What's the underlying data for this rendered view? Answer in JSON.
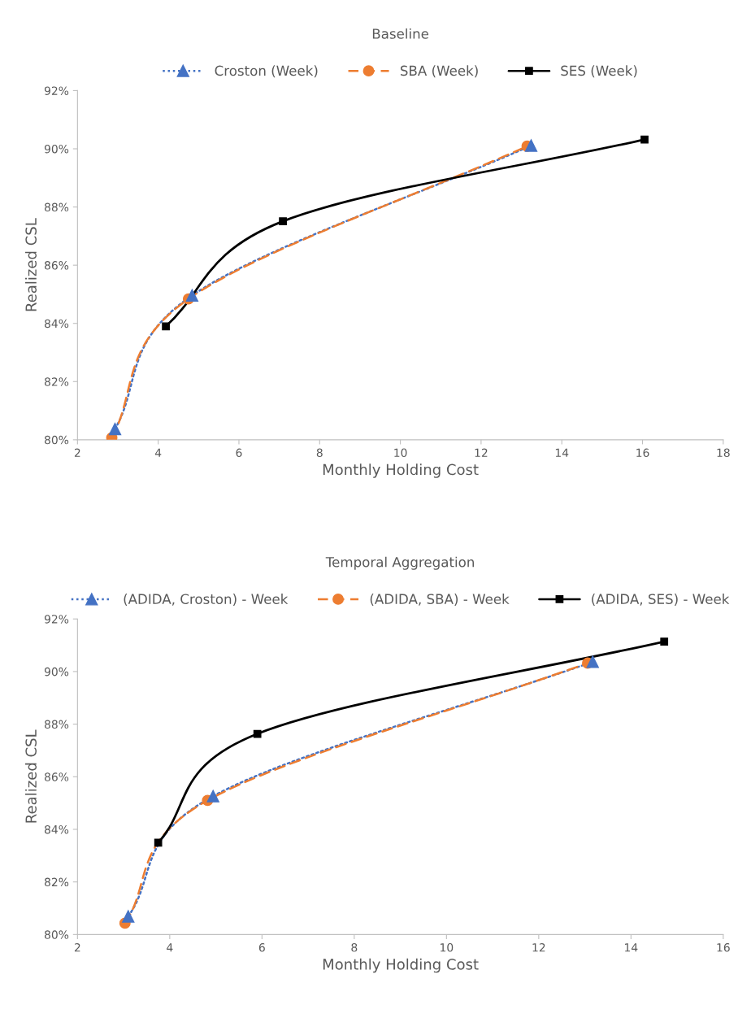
{
  "chart_data": [
    {
      "type": "line",
      "title": "Baseline",
      "xlabel": "Monthly Holding Cost",
      "ylabel": "Realized CSL",
      "xlim": [
        2,
        18
      ],
      "xticks": [
        2,
        4,
        6,
        8,
        10,
        12,
        14,
        16,
        18
      ],
      "ylim": [
        80,
        92
      ],
      "yticks": [
        {
          "value": 80,
          "label": "80%"
        },
        {
          "value": 82,
          "label": "82%"
        },
        {
          "value": 84,
          "label": "84%"
        },
        {
          "value": 86,
          "label": "86%"
        },
        {
          "value": 88,
          "label": "88%"
        },
        {
          "value": 90,
          "label": "90%"
        },
        {
          "value": 92,
          "label": "92%"
        }
      ],
      "grid": false,
      "legend": "top",
      "series": [
        {
          "name": "Croston (Week)",
          "color": "#4472c4",
          "marker": "triangle",
          "line_style": "dotted",
          "x": [
            2.93,
            4.84,
            13.24
          ],
          "values": [
            80.37,
            84.96,
            90.11
          ]
        },
        {
          "name": "SBA (Week)",
          "color": "#ed7d31",
          "marker": "circle",
          "line_style": "dashed",
          "x": [
            2.85,
            4.75,
            13.14
          ],
          "values": [
            80.07,
            84.84,
            90.09
          ]
        },
        {
          "name": "SES (Week)",
          "color": "#000000",
          "marker": "square",
          "line_style": "solid",
          "x": [
            4.19,
            7.09,
            16.05
          ],
          "values": [
            83.9,
            87.51,
            90.32
          ]
        }
      ]
    },
    {
      "type": "line",
      "title": "Temporal Aggregation",
      "xlabel": "Monthly Holding Cost",
      "ylabel": "Realized CSL",
      "xlim": [
        2,
        16
      ],
      "xticks": [
        2,
        4,
        6,
        8,
        10,
        12,
        14,
        16
      ],
      "ylim": [
        80,
        92
      ],
      "yticks": [
        {
          "value": 80,
          "label": "80%"
        },
        {
          "value": 82,
          "label": "82%"
        },
        {
          "value": 84,
          "label": "84%"
        },
        {
          "value": 86,
          "label": "86%"
        },
        {
          "value": 88,
          "label": "88%"
        },
        {
          "value": 90,
          "label": "90%"
        },
        {
          "value": 92,
          "label": "92%"
        }
      ],
      "grid": false,
      "legend": "top",
      "series": [
        {
          "name": "(ADIDA, Croston) - Week",
          "color": "#4472c4",
          "marker": "triangle",
          "line_style": "dotted",
          "x": [
            3.1,
            4.94,
            13.17
          ],
          "values": [
            80.69,
            85.26,
            90.37
          ]
        },
        {
          "name": "(ADIDA, SBA) - Week",
          "color": "#ed7d31",
          "marker": "circle",
          "line_style": "dashed",
          "x": [
            3.03,
            4.82,
            13.06
          ],
          "values": [
            80.43,
            85.1,
            90.32
          ]
        },
        {
          "name": "(ADIDA, SES) - Week",
          "color": "#000000",
          "marker": "square",
          "line_style": "solid",
          "x": [
            3.75,
            5.9,
            14.72
          ],
          "values": [
            83.49,
            87.63,
            91.14
          ]
        }
      ]
    }
  ]
}
